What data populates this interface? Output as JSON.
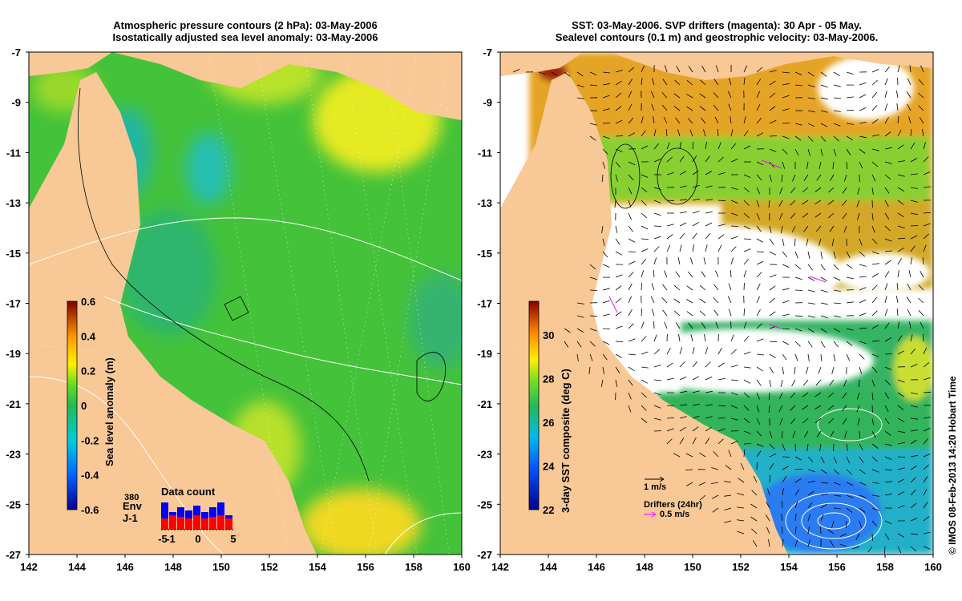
{
  "left_map": {
    "title_line1": "Atmospheric pressure contours (2 hPa): 03-May-2006",
    "title_line2": "Isostatically adjusted sea level anomaly: 03-May-2006",
    "colorbar_label": "Sea level anomaly (m)",
    "colorbar_ticks": [
      "0.6",
      "0.4",
      "0.2",
      "0",
      "-0.2",
      "-0.4",
      "-0.6"
    ],
    "inset": {
      "title": "Data count",
      "max_label": "380",
      "series1": "Env",
      "series2": "J-1",
      "series1_color": "#0000ff",
      "series2_color": "#ff0000",
      "x_ticks": [
        "-5",
        "-1",
        "0",
        "5"
      ],
      "series1_values": [
        0.85,
        0.55,
        0.7,
        0.6,
        0.75,
        0.55,
        0.7,
        0.85,
        0.45
      ],
      "series2_values": [
        0.35,
        0.45,
        0.4,
        0.35,
        0.45,
        0.35,
        0.4,
        0.45,
        0.35
      ]
    }
  },
  "right_map": {
    "title_line1": "SST: 03-May-2006. SVP drifters (magenta): 30 Apr - 05 May.",
    "title_line2": "Sealevel contours (0.1 m) and geostrophic velocity: 03-May-2006.",
    "colorbar_label": "3-day SST composite (deg C)",
    "colorbar_ticks": [
      "30",
      "28",
      "26",
      "24",
      "22"
    ],
    "velocity_scale": "1 m/s",
    "drifters_title": "Drifters (24hr)",
    "drifter_scale": "0.5 m/s",
    "drifter_color": "#ff00ff"
  },
  "axes": {
    "x_ticks": [
      "142",
      "144",
      "146",
      "148",
      "150",
      "152",
      "154",
      "156",
      "158",
      "160"
    ],
    "y_ticks": [
      "-7",
      "-9",
      "-11",
      "-13",
      "-15",
      "-17",
      "-19",
      "-21",
      "-23",
      "-25",
      "-27"
    ]
  },
  "copyright": "© IMOS 08-Feb-2013 14:20 Hobart Time"
}
